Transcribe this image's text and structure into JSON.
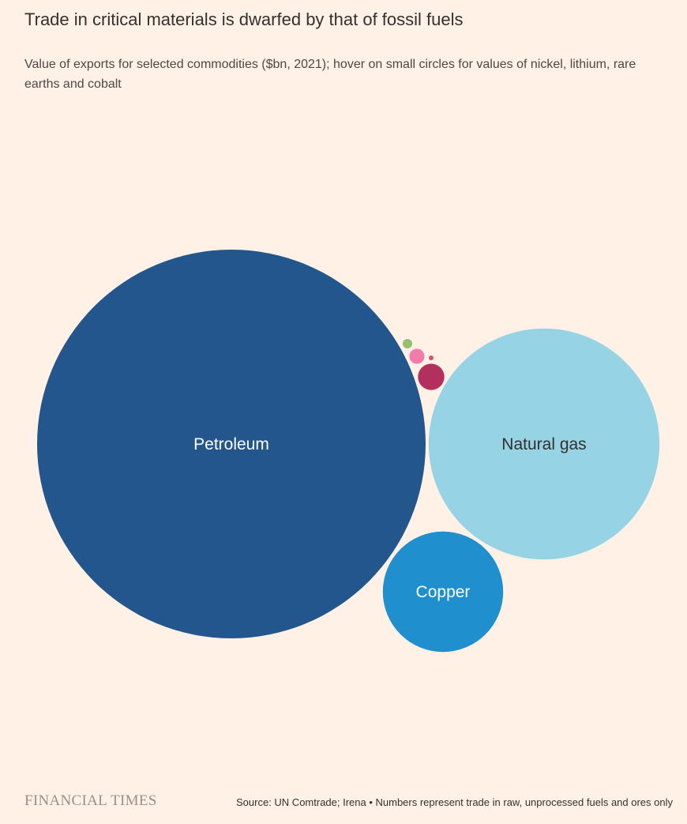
{
  "title": "Trade in critical materials is dwarfed by that of fossil fuels",
  "subtitle": "Value of exports for selected commodities ($bn, 2021); hover on small circles for values of nickel, lithium, rare earths and cobalt",
  "footer": {
    "brand": "FINANCIAL TIMES",
    "source": "Source: UN Comtrade; Irena • Numbers represent trade in raw, unprocessed fuels and ores only"
  },
  "chart_data": {
    "type": "bubble",
    "title": "Trade in critical materials is dwarfed by that of fossil fuels",
    "subtitle": "Value of exports for selected commodities ($bn, 2021)",
    "unit": "$bn",
    "series": [
      {
        "name": "Petroleum",
        "value": 1000,
        "color": "#22568C",
        "label": "Petroleum",
        "label_color": "#FFFFFF"
      },
      {
        "name": "Natural gas",
        "value": 353,
        "color": "#96D4E5",
        "label": "Natural gas",
        "label_color": "#33302E"
      },
      {
        "name": "Copper",
        "value": 96,
        "color": "#1F8FCD",
        "label": "Copper",
        "label_color": "#FFFFFF"
      },
      {
        "name": "Nickel",
        "value": 4.6,
        "color": "#B3305E",
        "label": ""
      },
      {
        "name": "Lithium",
        "value": 1.5,
        "color": "#F27BA9",
        "label": ""
      },
      {
        "name": "Rare earths",
        "value": 0.6,
        "color": "#96C06B",
        "label": ""
      },
      {
        "name": "Cobalt",
        "value": 0.15,
        "color": "#E24B6A",
        "label": ""
      }
    ]
  }
}
